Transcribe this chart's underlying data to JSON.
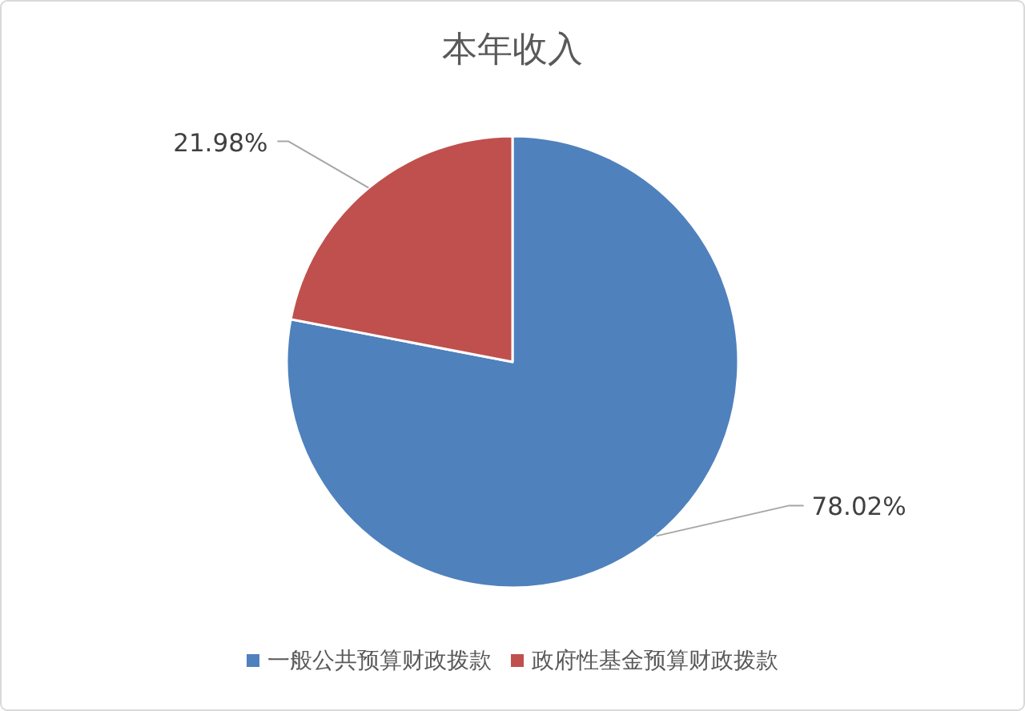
{
  "chart_data": {
    "type": "pie",
    "title": "本年收入",
    "categories": [
      "一般公共预算财政拨款",
      "政府性基金预算财政拨款"
    ],
    "values": [
      78.02,
      21.98
    ],
    "colors": [
      "#4f81bd",
      "#c0504d"
    ],
    "value_labels": [
      "78.02%",
      "21.98%"
    ],
    "legend": "bottom"
  }
}
